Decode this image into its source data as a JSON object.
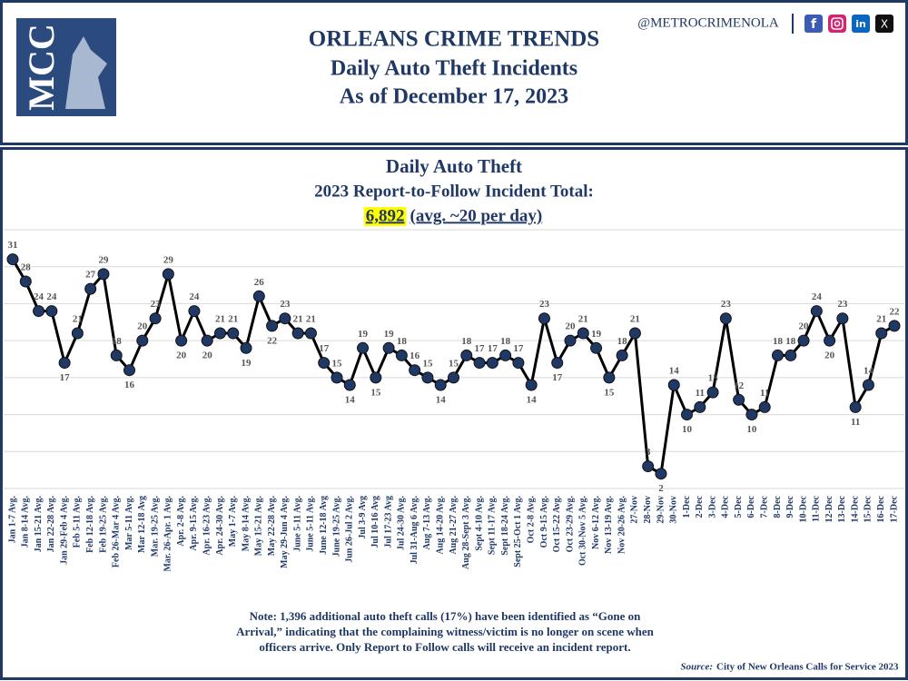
{
  "header": {
    "logo": "MCC",
    "title": "ORLEANS CRIME TRENDS",
    "subtitle": "Daily Auto Theft Incidents",
    "date_line": "As of December 17, 2023",
    "handle": "@METROCRIMENOLA",
    "social": [
      "f",
      "in",
      "X"
    ]
  },
  "chart_data": {
    "type": "line",
    "title": "Daily Auto Theft",
    "subtitle": "2023 Report-to-Follow Incident Total:",
    "total": "6,892",
    "total_note": "(avg. ~20 per day)",
    "categories": [
      "Jan 1-7 Avg.",
      "Jan 8-14 Avg.",
      "Jan 15-21 Avg.",
      "Jan 22-28 Avg.",
      "Jan 29-Feb 4 Avg.",
      "Feb 5-11 Avg.",
      "Feb 12-18 Avg.",
      "Feb 19-25 Avg.",
      "Feb 26-Mar 4 Avg.",
      "Mar 5-11 Avg.",
      "Mar 12-18 Avg",
      "Mar. 19-25 Avg.",
      "Mar. 26-Apr. 1 Avg.",
      "Apr. 2-8 Avg.",
      "Apr. 9-15 Avg.",
      "Apr. 16-23 Avg.",
      "Apr. 24-30 Avg.",
      "May 1-7 Avg.",
      "May 8-14 Avg.",
      "May 15-21 Avg.",
      "May 22-28 Avg.",
      "May 29-Jun 4 Avg.",
      "June 5-11 Avg.",
      "June 5-11 Avg.",
      "June 12-18 Avg",
      "June 19-25 Avg.",
      "Jun 26-Jul 2 Avg.",
      "Jul 3-9 Avg",
      "Jul 10-16 Avg",
      "Jul 17-23 Avg",
      "Jul 24-30 Avg.",
      "Jul 31-Aug 6 Avg.",
      "Aug 7-13 Avg.",
      "Aug 14-20 Avg.",
      "Aug 21-27 Avg.",
      "Aug 28-Sept 3 Avg.",
      "Sept 4-10 Avg.",
      "Sept 11-17 Avg.",
      "Sept 18-24 Avg.",
      "Sept 25-Oct 1 Avg.",
      "Oct 2-8 Avg.",
      "Oct 9-15 Avg.",
      "Oct 15-22 Avg.",
      "Oct 23-29 Avg.",
      "Oct 30-Nov 5 Avg.",
      "Nov 6-12 Avg.",
      "Nov 13-19 Avg.",
      "Nov 20-26 Avg.",
      "27-Nov",
      "28-Nov",
      "29-Nov",
      "30-Nov",
      "1-Dec",
      "2-Dec",
      "3-Dec",
      "4-Dec",
      "5-Dec",
      "6-Dec",
      "7-Dec",
      "8-Dec",
      "9-Dec",
      "10-Dec",
      "11-Dec",
      "12-Dec",
      "13-Dec",
      "14-Dec",
      "15-Dec",
      "16-Dec",
      "17-Dec"
    ],
    "values": [
      31,
      28,
      24,
      24,
      17,
      21,
      27,
      29,
      18,
      16,
      20,
      23,
      29,
      20,
      24,
      20,
      21,
      21,
      19,
      26,
      22,
      23,
      21,
      21,
      17,
      15,
      14,
      19,
      15,
      19,
      18,
      16,
      15,
      14,
      15,
      18,
      17,
      17,
      18,
      17,
      14,
      23,
      17,
      20,
      21,
      19,
      15,
      18,
      21,
      3,
      2,
      14,
      10,
      11,
      13,
      23,
      12,
      10,
      11,
      18,
      18,
      20,
      24,
      20,
      23,
      11,
      14,
      21,
      22
    ],
    "color": "#000000",
    "marker_color": "#1f3864",
    "ylim": [
      0,
      35
    ],
    "yticks": [
      0,
      5,
      10,
      15,
      20,
      25,
      30,
      35
    ],
    "grid": true,
    "note": [
      "Note: 1,396 additional auto theft calls (17%) have been identified as “Gone on",
      "Arrival,” indicating that the complaining witness/victim is no longer on scene when",
      "officers arrive.  Only Report to Follow calls will receive an incident report."
    ],
    "source_label": "Source:",
    "source": "City of New Orleans Calls for Service 2023"
  }
}
